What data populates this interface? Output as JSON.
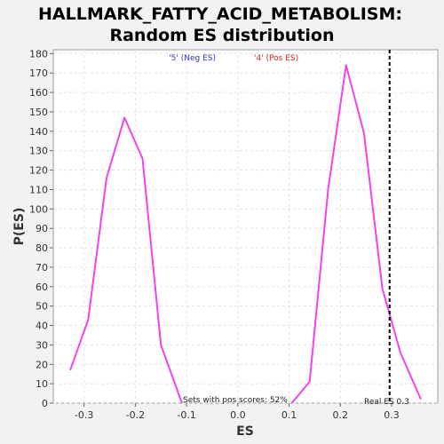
{
  "chart_data": {
    "type": "line",
    "title_lines": [
      "HALLMARK_FATTY_ACID_METABOLISM:",
      "Random ES distribution"
    ],
    "xlabel": "ES",
    "ylabel": "P(ES)",
    "xlim": [
      -0.36,
      0.39
    ],
    "ylim": [
      0,
      182
    ],
    "xticks": [
      -0.3,
      -0.2,
      -0.1,
      0.0,
      0.1,
      0.2,
      0.3
    ],
    "xtick_labels": [
      "-0.3",
      "-0.2",
      "-0.1",
      "0.0",
      "0.1",
      "0.2",
      "0.3"
    ],
    "yticks": [
      0,
      10,
      20,
      30,
      40,
      50,
      60,
      70,
      80,
      90,
      100,
      110,
      120,
      130,
      140,
      150,
      160,
      170,
      180
    ],
    "grid": true,
    "legend": [
      {
        "label": "'5' (Neg ES)",
        "color": "#3333cc"
      },
      {
        "label": "'4' (Pos ES)",
        "color": "#dd2222"
      }
    ],
    "series": [
      {
        "color": "#ee44ee",
        "segments": [
          {
            "x": [
              -0.327,
              -0.292,
              -0.256,
              -0.221,
              -0.186,
              -0.15,
              -0.109
            ],
            "y": [
              17,
              43,
              116,
              147,
              126,
              30,
              0
            ]
          },
          {
            "x": [
              0.105,
              0.14,
              0.176,
              0.211,
              0.246,
              0.282,
              0.317,
              0.357
            ],
            "y": [
              0,
              11,
              110,
              174,
              139,
              59,
              26,
              2
            ]
          }
        ]
      }
    ],
    "annotations": {
      "pos_scores": "Sets with pos scores: 52%",
      "real_es_label": "Real ES 0.3",
      "real_es_value": 0.296
    }
  }
}
